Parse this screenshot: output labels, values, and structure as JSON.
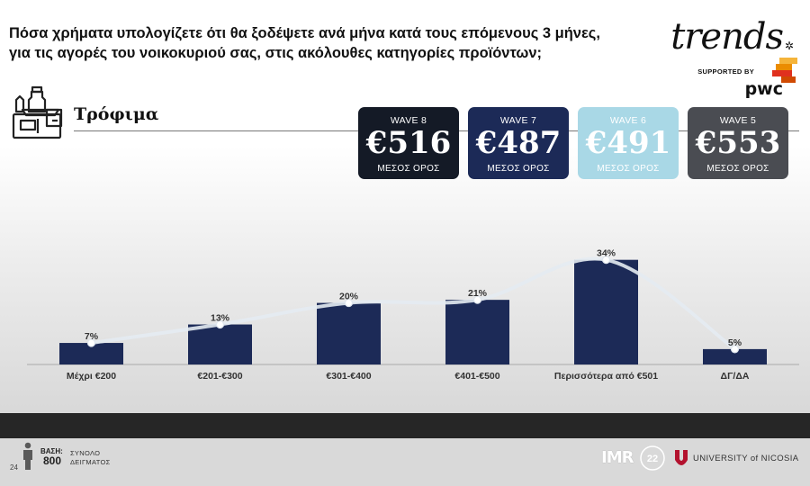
{
  "header": {
    "question_line1": "Πόσα χρήματα υπολογίζετε ότι θα ξοδέψετε ανά μήνα κατά τους επόμενους 3 μήνες,",
    "question_line2": "για τις αγορές του νοικοκυριού σας, στις ακόλουθες κατηγορίες προϊόντων;"
  },
  "brand": {
    "trends": "trends",
    "supported_by": "SUPPORTED BY",
    "pwc": "pwc"
  },
  "category": {
    "title": "Τρόφιμα",
    "icon": "groceries-icon"
  },
  "waves": [
    {
      "label": "WAVE 8",
      "value": "€516",
      "sub": "ΜΕΣΟΣ ΟΡΟΣ",
      "color": "#141a26"
    },
    {
      "label": "WAVE 7",
      "value": "€487",
      "sub": "ΜΕΣΟΣ ΟΡΟΣ",
      "color": "#1c2a57"
    },
    {
      "label": "WAVE 6",
      "value": "€491",
      "sub": "ΜΕΣΟΣ ΟΡΟΣ",
      "color": "#a9d8e6"
    },
    {
      "label": "WAVE 5",
      "value": "€553",
      "sub": "ΜΕΣΟΣ ΟΡΟΣ",
      "color": "#4a4c52"
    }
  ],
  "chart_data": {
    "type": "bar",
    "categories": [
      "Μέχρι €200",
      "€201-€300",
      "€301-€400",
      "€401-€500",
      "Περισσότερα από €501",
      "ΔΓ/ΔΑ"
    ],
    "series": [
      {
        "values": [
          7,
          13,
          20,
          21,
          34,
          5
        ],
        "labels": [
          "7%",
          "13%",
          "20%",
          "21%",
          "34%",
          "5%"
        ],
        "color": "#1c2a57"
      }
    ],
    "overlay_line": {
      "values": [
        7,
        13,
        20,
        21,
        34,
        5
      ],
      "color": "#e4ebf2"
    },
    "ylim": [
      0,
      38
    ],
    "title": "",
    "xlabel": "",
    "ylabel": "",
    "grid": false
  },
  "footer": {
    "page_number": "24",
    "base_label": "ΒΑΣΗ:",
    "base_value": "800",
    "base_desc_line1": "ΣΥΝΟΛΟ",
    "base_desc_line2": "ΔΕΙΓΜΑΤΟΣ",
    "imr": "IMR",
    "imr_badge": "22",
    "university": "UNIVERSITY of NICOSIA"
  }
}
